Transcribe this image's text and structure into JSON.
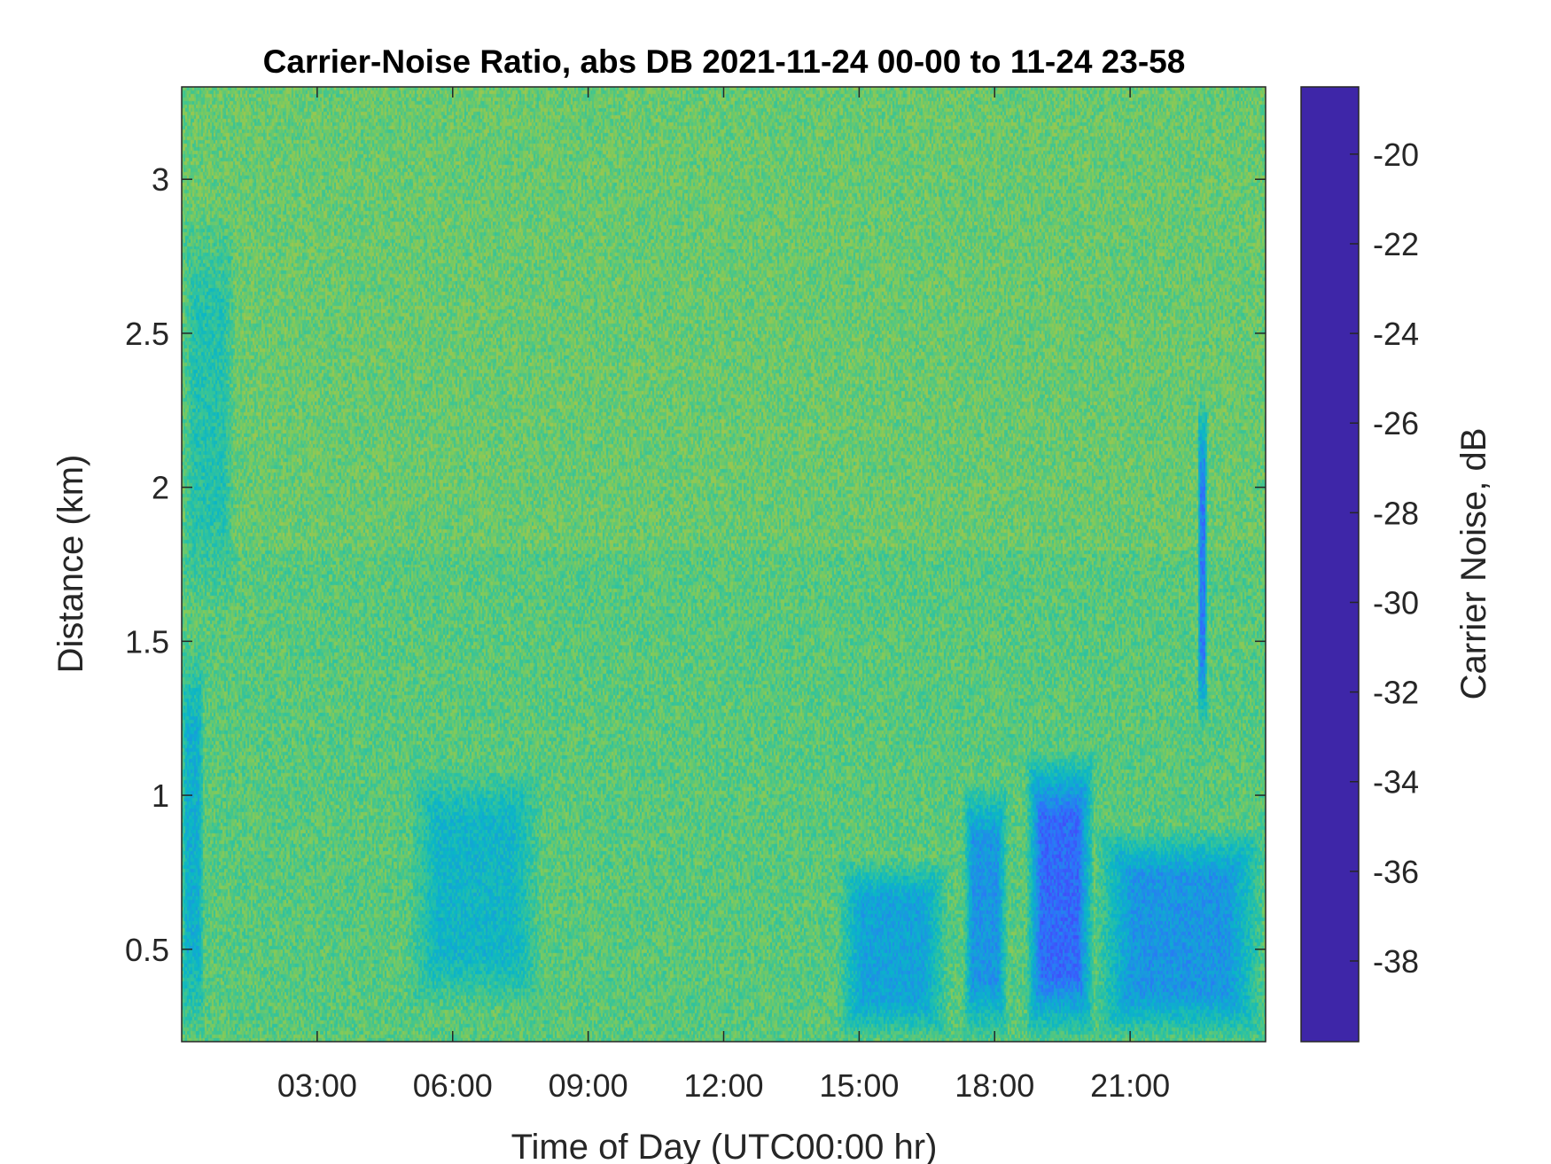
{
  "chart_data": {
    "type": "heatmap",
    "title": "Carrier-Noise Ratio, abs DB 2021-11-24 00-00 to 11-24 23-58",
    "xlabel": "Time of Day (UTC00:00 hr)",
    "ylabel": "Distance (km)",
    "colorbar_label": "Carrier Noise, dB",
    "x_unit": "hours UTC",
    "xlim": [
      0,
      24
    ],
    "ylim": [
      0.2,
      3.3
    ],
    "clim": [
      -39.8,
      -18.5
    ],
    "x_ticks": [
      {
        "value": 3,
        "label": "03:00"
      },
      {
        "value": 6,
        "label": "06:00"
      },
      {
        "value": 9,
        "label": "09:00"
      },
      {
        "value": 12,
        "label": "12:00"
      },
      {
        "value": 15,
        "label": "15:00"
      },
      {
        "value": 18,
        "label": "18:00"
      },
      {
        "value": 21,
        "label": "21:00"
      }
    ],
    "y_ticks": [
      {
        "value": 0.5,
        "label": "0.5"
      },
      {
        "value": 1,
        "label": "1"
      },
      {
        "value": 1.5,
        "label": "1.5"
      },
      {
        "value": 2,
        "label": "2"
      },
      {
        "value": 2.5,
        "label": "2.5"
      },
      {
        "value": 3,
        "label": "3"
      }
    ],
    "colorbar_ticks": [
      {
        "value": -20,
        "label": "-20"
      },
      {
        "value": -22,
        "label": "-22"
      },
      {
        "value": -24,
        "label": "-24"
      },
      {
        "value": -26,
        "label": "-26"
      },
      {
        "value": -28,
        "label": "-28"
      },
      {
        "value": -30,
        "label": "-30"
      },
      {
        "value": -32,
        "label": "-32"
      },
      {
        "value": -34,
        "label": "-34"
      },
      {
        "value": -36,
        "label": "-36"
      },
      {
        "value": -38,
        "label": "-38"
      }
    ],
    "colormap": "parula",
    "colormap_stops": [
      "#3e26a8",
      "#4743f7",
      "#2f6ffc",
      "#1a98e0",
      "#0ab6c7",
      "#34c49a",
      "#7fca5c",
      "#c9c13a",
      "#fbbc3c",
      "#f9fb15"
    ],
    "background_level_db": -31.5,
    "background_level_high_range_db": -32,
    "features": [
      {
        "t_start": 0,
        "t_end": 0.5,
        "d_start": 0.2,
        "d_end": 1.5,
        "level_db": -27.5
      },
      {
        "t_start": 0,
        "t_end": 1.2,
        "d_start": 1.6,
        "d_end": 2.9,
        "level_db": -29.5
      },
      {
        "t_start": 5,
        "t_end": 8,
        "d_start": 0.3,
        "d_end": 1.1,
        "level_db": -28
      },
      {
        "t_start": 14.5,
        "t_end": 17,
        "d_start": 0.2,
        "d_end": 0.8,
        "level_db": -26.5
      },
      {
        "t_start": 17.3,
        "t_end": 18.3,
        "d_start": 0.2,
        "d_end": 1.05,
        "level_db": -25.5
      },
      {
        "t_start": 18.7,
        "t_end": 20.2,
        "d_start": 0.2,
        "d_end": 1.15,
        "level_db": -23
      },
      {
        "t_start": 20.2,
        "t_end": 24,
        "d_start": 0.2,
        "d_end": 0.9,
        "level_db": -25.5
      },
      {
        "t_start": 22.5,
        "t_end": 22.7,
        "d_start": 1.2,
        "d_end": 2.3,
        "level_db": -24
      }
    ]
  }
}
